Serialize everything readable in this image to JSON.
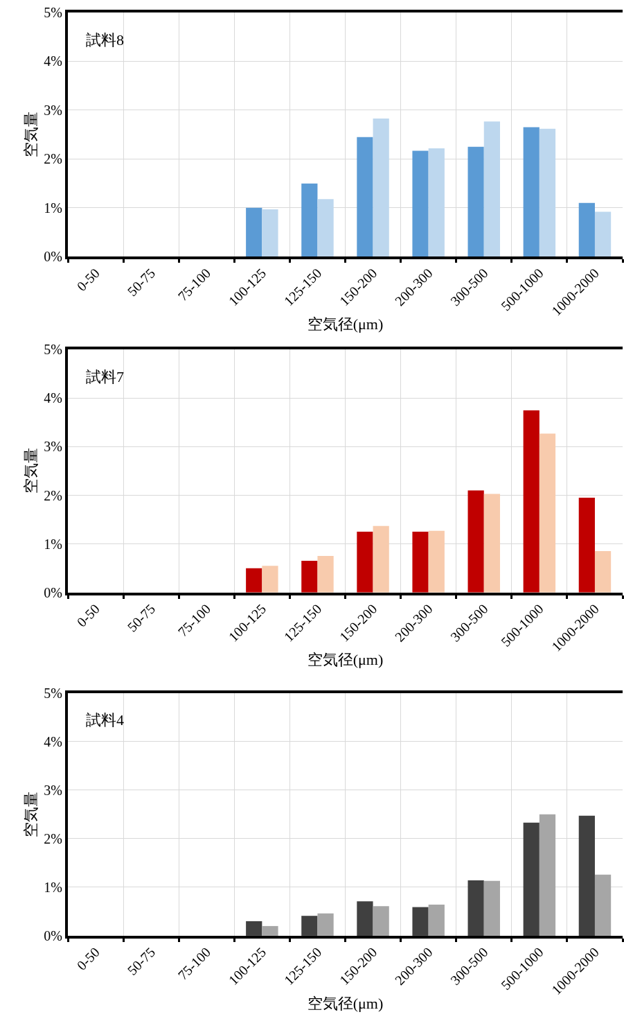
{
  "chart_data": [
    {
      "type": "bar",
      "title": "試料8",
      "xlabel": "空気径(μm)",
      "ylabel": "空気量",
      "categories": [
        "0-50",
        "50-75",
        "75-100",
        "100-125",
        "125-150",
        "150-200",
        "200-300",
        "300-500",
        "500-1000",
        "1000-2000"
      ],
      "series": [
        {
          "color": "#5b9bd5",
          "values": [
            0,
            0,
            0,
            1.0,
            1.5,
            2.45,
            2.17,
            2.25,
            2.65,
            1.1
          ]
        },
        {
          "color": "#bdd7ee",
          "values": [
            0,
            0,
            0,
            0.97,
            1.18,
            2.83,
            2.22,
            2.77,
            2.62,
            0.92
          ]
        }
      ],
      "ylim": [
        0,
        5
      ],
      "yticks": [
        {
          "value": 0,
          "label": "0%"
        },
        {
          "value": 1,
          "label": "1%"
        },
        {
          "value": 2,
          "label": "2%"
        },
        {
          "value": 3,
          "label": "3%"
        },
        {
          "value": 4,
          "label": "4%"
        },
        {
          "value": 5,
          "label": "5%"
        }
      ],
      "grid": true
    },
    {
      "type": "bar",
      "title": "試料7",
      "xlabel": "空気径(μm)",
      "ylabel": "空気量",
      "categories": [
        "0-50",
        "50-75",
        "75-100",
        "100-125",
        "125-150",
        "150-200",
        "200-300",
        "300-500",
        "500-1000",
        "1000-2000"
      ],
      "series": [
        {
          "color": "#c00000",
          "values": [
            0,
            0,
            0,
            0.5,
            0.65,
            1.25,
            1.25,
            2.1,
            3.75,
            1.95
          ]
        },
        {
          "color": "#f8cbad",
          "values": [
            0,
            0,
            0,
            0.55,
            0.75,
            1.37,
            1.27,
            2.03,
            3.27,
            0.85
          ]
        }
      ],
      "ylim": [
        0,
        5
      ],
      "yticks": [
        {
          "value": 0,
          "label": "0%"
        },
        {
          "value": 1,
          "label": "1%"
        },
        {
          "value": 2,
          "label": "2%"
        },
        {
          "value": 3,
          "label": "3%"
        },
        {
          "value": 4,
          "label": "4%"
        },
        {
          "value": 5,
          "label": "5%"
        }
      ],
      "grid": true
    },
    {
      "type": "bar",
      "title": "試料4",
      "xlabel": "空気径(μm)",
      "ylabel": "空気量",
      "categories": [
        "0-50",
        "50-75",
        "75-100",
        "100-125",
        "125-150",
        "150-200",
        "200-300",
        "300-500",
        "500-1000",
        "1000-2000"
      ],
      "series": [
        {
          "color": "#404040",
          "values": [
            0,
            0,
            0,
            0.3,
            0.41,
            0.71,
            0.59,
            1.14,
            2.33,
            2.47
          ]
        },
        {
          "color": "#a6a6a6",
          "values": [
            0,
            0,
            0,
            0.2,
            0.46,
            0.61,
            0.64,
            1.13,
            2.5,
            1.26
          ]
        }
      ],
      "ylim": [
        0,
        5
      ],
      "yticks": [
        {
          "value": 0,
          "label": "0%"
        },
        {
          "value": 1,
          "label": "1%"
        },
        {
          "value": 2,
          "label": "2%"
        },
        {
          "value": 3,
          "label": "3%"
        },
        {
          "value": 4,
          "label": "4%"
        },
        {
          "value": 5,
          "label": "5%"
        }
      ],
      "grid": true
    }
  ]
}
